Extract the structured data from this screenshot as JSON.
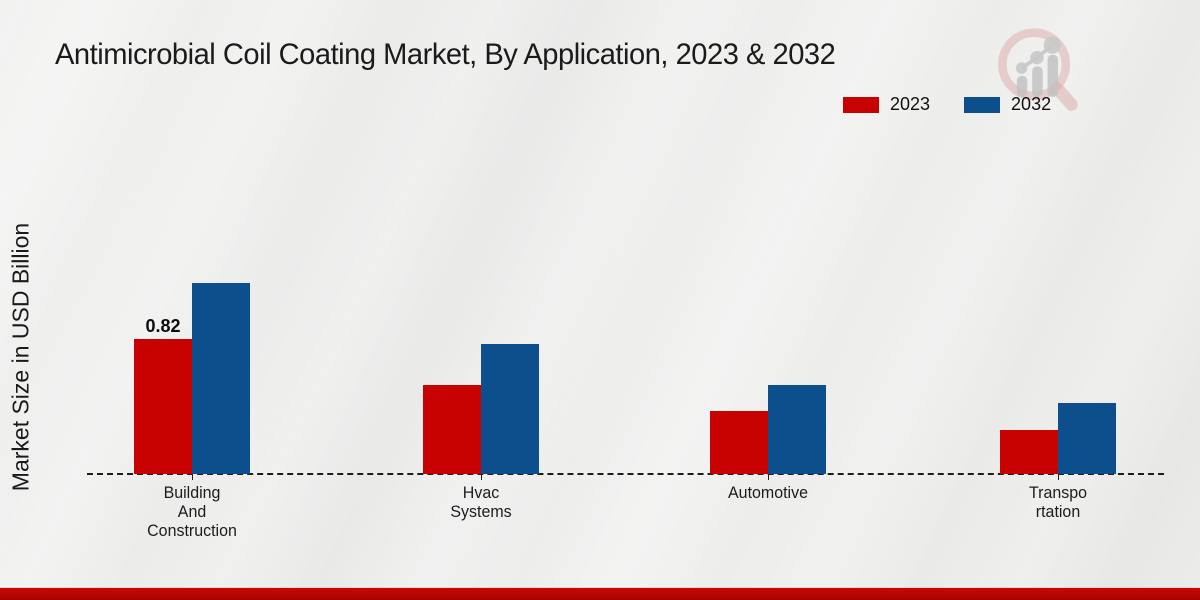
{
  "title": "Antimicrobial Coil Coating Market, By Application, 2023 & 2032",
  "logo_name": "magnifier-bar-chart-logo",
  "footer": {
    "accent_color": "#b00404"
  },
  "chart_data": {
    "type": "bar",
    "title": "Antimicrobial Coil Coating Market, By Application, 2023 & 2032",
    "ylabel": "Market Size in USD Billion",
    "xlabel": "",
    "categories": [
      "Building And Construction",
      "Hvac Systems",
      "Automotive",
      "Transportation"
    ],
    "category_display_lines": [
      [
        "Building",
        "And",
        "Construction"
      ],
      [
        "Hvac",
        "Systems"
      ],
      [
        "Automotive"
      ],
      [
        "Transpo",
        "rtation"
      ]
    ],
    "series": [
      {
        "name": "2023",
        "color": "#c80201",
        "values": [
          0.82,
          0.54,
          0.38,
          0.27
        ],
        "labels": [
          "0.82",
          "",
          "",
          ""
        ]
      },
      {
        "name": "2032",
        "color": "#0d4e8c",
        "values": [
          1.16,
          0.79,
          0.54,
          0.43
        ],
        "labels": [
          "",
          "",
          "",
          ""
        ]
      }
    ],
    "ylim": [
      0,
      1.3
    ],
    "grid": false,
    "baseline_style": "dashed",
    "legend_position": "top-right",
    "data_label_shown": "0.82"
  }
}
